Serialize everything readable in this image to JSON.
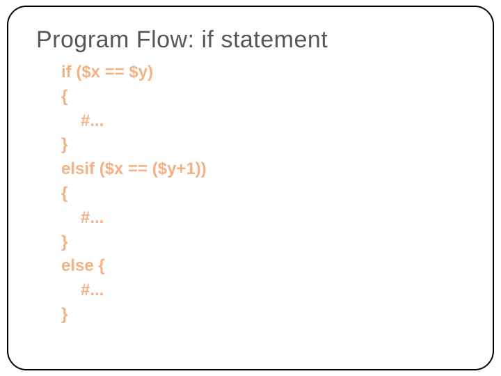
{
  "slide": {
    "title": "Program Flow: if statement",
    "title_color": "#565656",
    "title_fontsize": 34,
    "code_color": "#f4b183",
    "code_fontsize": 24,
    "code_fontweight": 700,
    "frame_border_color": "#000000",
    "frame_border_radius": 28,
    "background_color": "#ffffff",
    "lines": [
      {
        "text": "if ($x == $y)",
        "indent": 0
      },
      {
        "text": " {",
        "indent": 0
      },
      {
        "text": "#...",
        "indent": 2
      },
      {
        "text": "}",
        "indent": 0
      },
      {
        "text": "elsif ($x == ($y+1))",
        "indent": 0
      },
      {
        "text": "{",
        "indent": 0
      },
      {
        "text": "#...",
        "indent": 2
      },
      {
        "text": "}",
        "indent": 0
      },
      {
        "text": "else {",
        "indent": 0
      },
      {
        "text": "#...",
        "indent": 2
      },
      {
        "text": "}",
        "indent": 0
      }
    ]
  }
}
